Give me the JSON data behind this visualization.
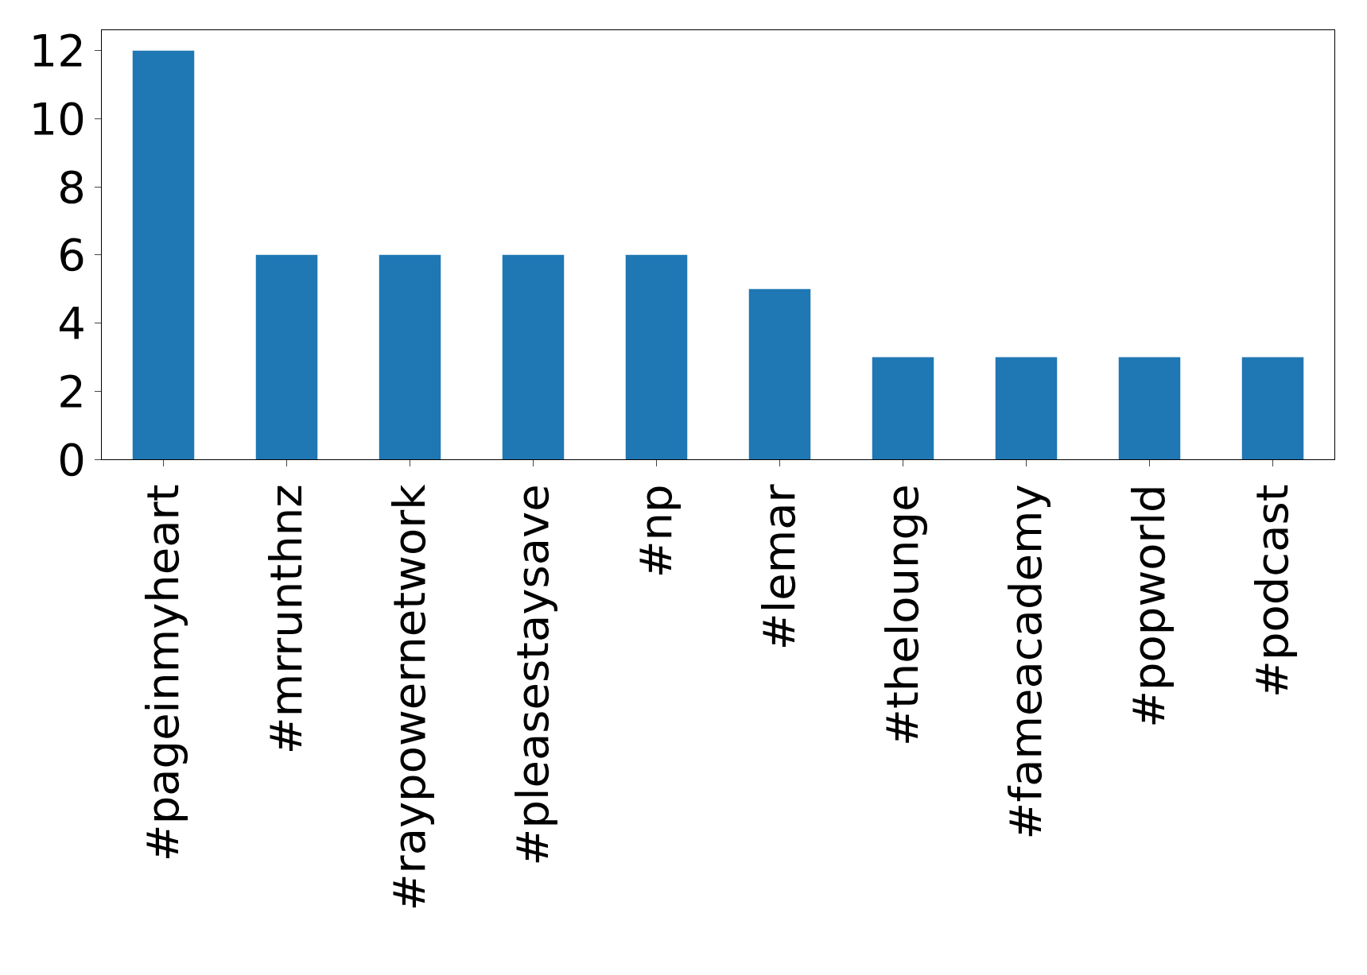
{
  "chart_data": {
    "type": "bar",
    "categories": [
      "#pageinmyheart",
      "#mrrunthnz",
      "#raypowernetwork",
      "#pleasestaysave",
      "#np",
      "#lemar",
      "#thelounge",
      "#fameacademy",
      "#popworld",
      "#podcast"
    ],
    "values": [
      12,
      6,
      6,
      6,
      6,
      5,
      3,
      3,
      3,
      3
    ],
    "color": "#1f77b4",
    "ylim": [
      0,
      12.6
    ],
    "yticks": [
      0,
      2,
      4,
      6,
      8,
      10,
      12
    ]
  }
}
